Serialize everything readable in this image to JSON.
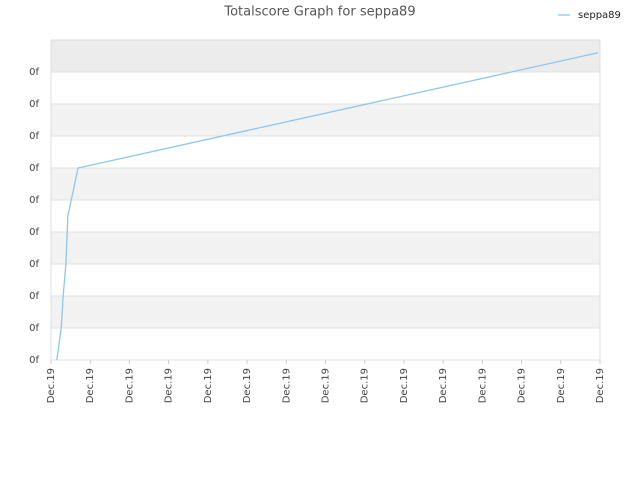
{
  "chart_data": {
    "type": "line",
    "title": "Totalscore Graph for seppa89",
    "x": [
      0.15,
      0.26,
      0.31,
      0.38,
      0.43,
      0.69,
      13.95
    ],
    "series": [
      {
        "name": "seppa89",
        "color": "#8ec6f0",
        "values": [
          0,
          1,
          2,
          3,
          4.5,
          6,
          9.6
        ]
      }
    ],
    "xlim": [
      0,
      14
    ],
    "xticks": [
      {
        "value": 0,
        "label": "Dec.19"
      },
      {
        "value": 1,
        "label": "Dec.19"
      },
      {
        "value": 2,
        "label": "Dec.19"
      },
      {
        "value": 3,
        "label": "Dec.19"
      },
      {
        "value": 4,
        "label": "Dec.19"
      },
      {
        "value": 5,
        "label": "Dec.19"
      },
      {
        "value": 6,
        "label": "Dec.19"
      },
      {
        "value": 7,
        "label": "Dec.19"
      },
      {
        "value": 8,
        "label": "Dec.19"
      },
      {
        "value": 9,
        "label": "Dec.19"
      },
      {
        "value": 10,
        "label": "Dec.19"
      },
      {
        "value": 11,
        "label": "Dec.19"
      },
      {
        "value": 12,
        "label": "Dec.19"
      },
      {
        "value": 13,
        "label": "Dec.19"
      },
      {
        "value": 14,
        "label": "Dec.19"
      }
    ],
    "ylim": [
      0,
      10
    ],
    "yticks": [
      {
        "value": 0,
        "label": "0f"
      },
      {
        "value": 1,
        "label": "0f"
      },
      {
        "value": 2,
        "label": "0f"
      },
      {
        "value": 3,
        "label": "0f"
      },
      {
        "value": 4,
        "label": "0f"
      },
      {
        "value": 5,
        "label": "0f"
      },
      {
        "value": 6,
        "label": "0f"
      },
      {
        "value": 7,
        "label": "0f"
      },
      {
        "value": 8,
        "label": "0f"
      },
      {
        "value": 9,
        "label": "0f"
      }
    ],
    "grid": true,
    "legend": "top-right"
  }
}
